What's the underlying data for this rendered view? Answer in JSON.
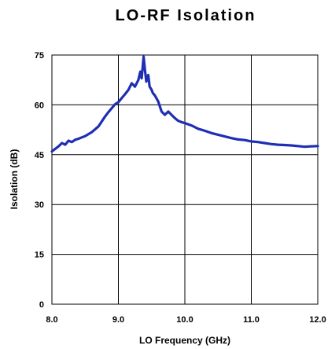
{
  "chart_data": {
    "type": "line",
    "title": "LO-RF Isolation",
    "xlabel": "LO Frequency (GHz)",
    "ylabel": "Isolation (dB)",
    "xlim": [
      8.0,
      12.0
    ],
    "ylim": [
      0,
      75
    ],
    "xticks": [
      "8.0",
      "9.0",
      "10.0",
      "11.0",
      "12.0"
    ],
    "yticks": [
      "0",
      "15",
      "30",
      "45",
      "60",
      "75"
    ],
    "grid": true,
    "series": [
      {
        "color": "#1f2fb4",
        "x": [
          8.0,
          8.1,
          8.15,
          8.2,
          8.25,
          8.3,
          8.35,
          8.4,
          8.45,
          8.5,
          8.6,
          8.7,
          8.8,
          8.85,
          8.9,
          8.95,
          9.0,
          9.05,
          9.1,
          9.15,
          9.2,
          9.25,
          9.3,
          9.33,
          9.35,
          9.38,
          9.4,
          9.42,
          9.45,
          9.47,
          9.5,
          9.52,
          9.55,
          9.6,
          9.65,
          9.7,
          9.75,
          9.8,
          9.85,
          9.9,
          9.95,
          10.0,
          10.1,
          10.2,
          10.3,
          10.4,
          10.5,
          10.6,
          10.7,
          10.8,
          10.9,
          11.0,
          11.1,
          11.2,
          11.3,
          11.4,
          11.5,
          11.6,
          11.7,
          11.8,
          11.9,
          12.0
        ],
        "y": [
          46.0,
          47.5,
          48.5,
          48.0,
          49.2,
          48.8,
          49.5,
          49.8,
          50.2,
          50.6,
          51.8,
          53.5,
          56.5,
          57.8,
          59.0,
          60.2,
          60.8,
          62.0,
          63.2,
          64.5,
          66.5,
          65.5,
          67.5,
          70.0,
          68.0,
          74.5,
          70.5,
          67.0,
          69.0,
          65.5,
          64.5,
          63.5,
          62.8,
          61.0,
          58.0,
          57.0,
          58.0,
          57.0,
          56.0,
          55.2,
          54.8,
          54.5,
          53.8,
          52.8,
          52.2,
          51.5,
          51.0,
          50.5,
          50.0,
          49.6,
          49.4,
          49.0,
          48.8,
          48.5,
          48.2,
          48.0,
          47.9,
          47.8,
          47.6,
          47.4,
          47.5,
          47.6
        ]
      }
    ]
  }
}
